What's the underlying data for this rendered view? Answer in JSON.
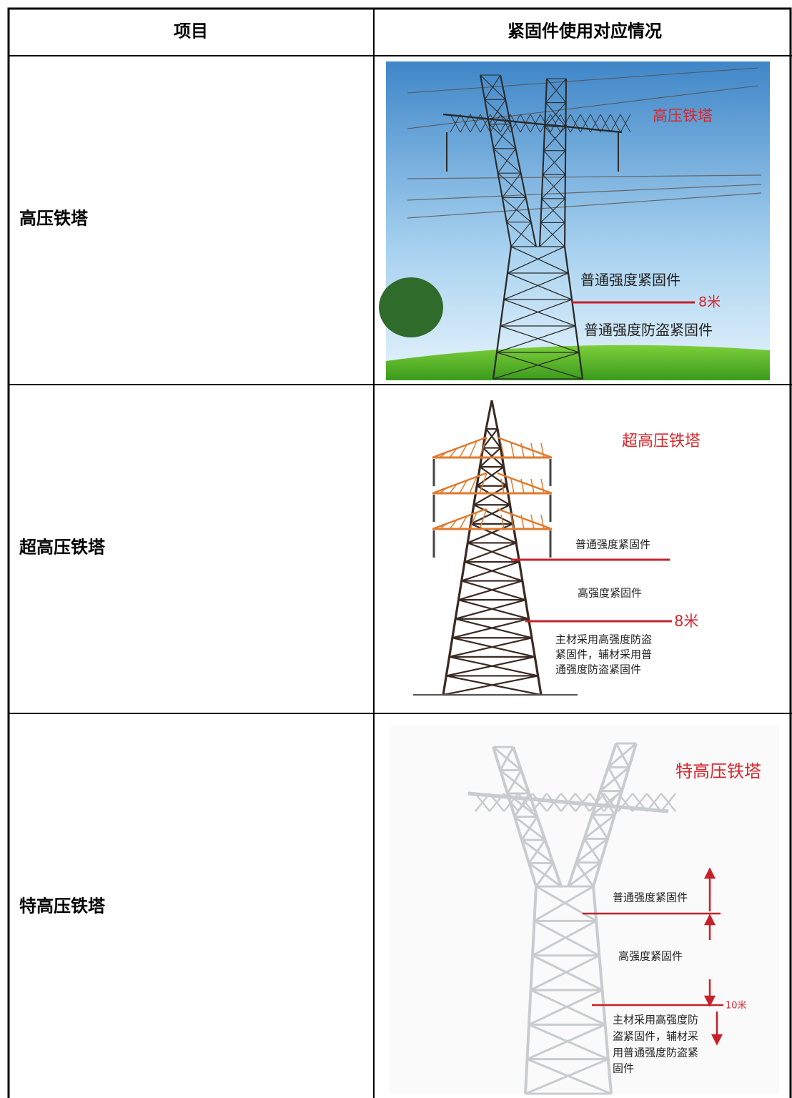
{
  "table": {
    "header": [
      "项目",
      "紧固件使用对应情况"
    ],
    "rows": [
      {
        "item": "高压铁塔",
        "image": {
          "title": "高压铁塔",
          "upper": "普通强度紧固件",
          "height": "8米",
          "lower": [
            "普通强度防盗紧固件"
          ]
        }
      },
      {
        "item": "超高压铁塔",
        "image": {
          "title": "超高压铁塔",
          "upper": "普通强度紧固件",
          "middle": "高强度紧固件",
          "height": "8米",
          "lower": [
            "主材采用高强度防盗",
            "紧固件，辅材采用普",
            "通强度防盗紧固件"
          ]
        }
      },
      {
        "item": "特高压铁塔",
        "image": {
          "title": "特高压铁塔",
          "upper": "普通强度紧固件",
          "middle": "高强度紧固件",
          "height": "10米",
          "lower": [
            "主材采用高强度防",
            "盗紧固件，辅材采",
            "用普通强度防盗紧",
            "固件"
          ]
        }
      }
    ]
  }
}
